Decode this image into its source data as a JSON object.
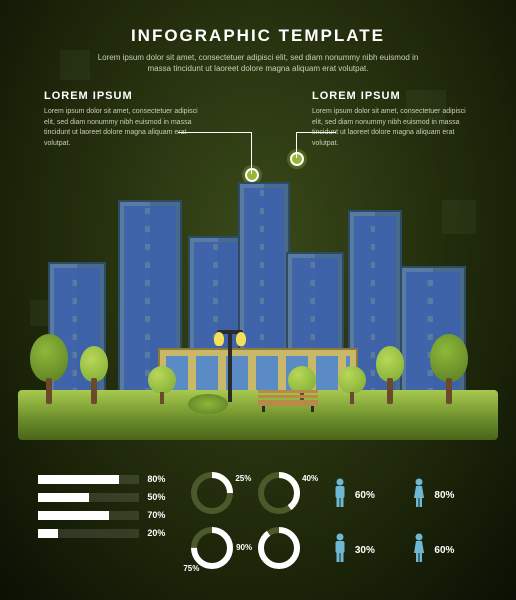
{
  "header": {
    "title": "INFOGRAPHIC TEMPLATE",
    "subtitle": "Lorem ipsum dolor sit amet, consectetuer adipisci elit, sed diam nonummy nibh euismod in massa tincidunt ut laoreet dolore magna aliquam erat volutpat."
  },
  "callouts": {
    "left": {
      "title": "LOREM IPSUM",
      "body": "Lorem ipsum dolor sit amet, consectetuer adipisci elit, sed diam nonummy nibh euismod in massa tincidunt ut laoreet dolore magna aliquam erat volutpat."
    },
    "right": {
      "title": "LOREM IPSUM",
      "body": "Lorem ipsum dolor sit amet, consectetuer adipisci elit, sed diam nonummy nibh euismod in massa tincidunt ut laoreet dolore magna aliquam erat volutpat."
    }
  },
  "colors": {
    "accent": "#97b537",
    "barFill": "#ffffff",
    "barTrack": "rgba(255,255,255,.12)",
    "donutFill": "#ffffff",
    "donutTrack": "#4a5a2a",
    "maleIcon": "#6fb8d4",
    "femaleIcon": "#6fb8d4",
    "text": "#ffffff"
  },
  "bars": {
    "type": "bar-horizontal",
    "items": [
      {
        "value": 80,
        "label": "80%"
      },
      {
        "value": 50,
        "label": "50%"
      },
      {
        "value": 70,
        "label": "70%"
      },
      {
        "value": 20,
        "label": "20%"
      }
    ],
    "max": 100
  },
  "donuts": {
    "type": "donut",
    "items": [
      {
        "value": 25,
        "label": "25%"
      },
      {
        "value": 40,
        "label": "40%"
      },
      {
        "value": 75,
        "label": "75%"
      },
      {
        "value": 90,
        "label": "90%"
      }
    ],
    "strokeWidth": 6,
    "radius": 18
  },
  "people": {
    "items": [
      {
        "icon": "male",
        "value": 60,
        "label": "60%"
      },
      {
        "icon": "female",
        "value": 80,
        "label": "80%"
      },
      {
        "icon": "male",
        "value": 30,
        "label": "30%"
      },
      {
        "icon": "female",
        "value": 60,
        "label": "60%"
      }
    ]
  }
}
